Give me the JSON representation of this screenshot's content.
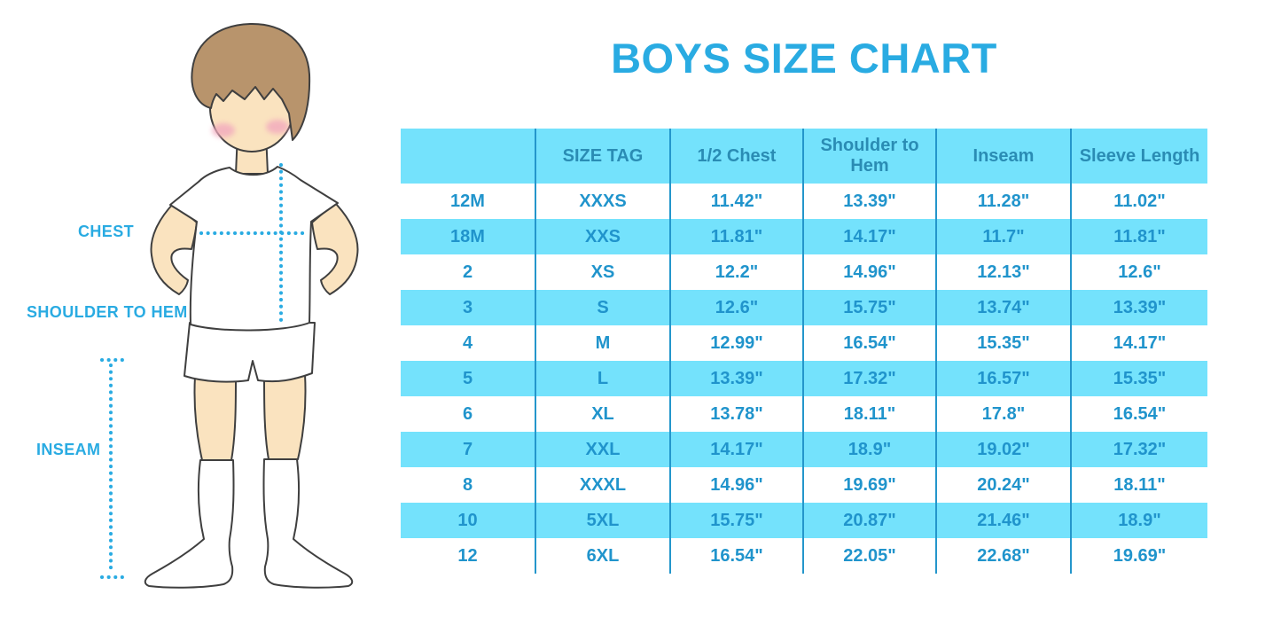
{
  "title": "BOYS SIZE CHART",
  "figure_labels": {
    "chest": "CHEST",
    "shoulder_to_hem": "SHOULDER TO HEM",
    "inseam": "INSEAM"
  },
  "colors": {
    "accent_blue": "#29ABE2",
    "table_row_fill": "#74E2FC",
    "table_divider": "#2496CB",
    "table_text": "#2094CC",
    "header_text": "#2A8CB4",
    "skin": "#FAE3BF",
    "hair": "#B8946C",
    "blush": "#F2A9BD",
    "outline": "#3F3F3F"
  },
  "chart_data": {
    "type": "table",
    "columns": [
      "",
      "SIZE TAG",
      "1/2 Chest",
      "Shoulder to Hem",
      "Inseam",
      "Sleeve Length"
    ],
    "rows": [
      [
        "12M",
        "XXXS",
        "11.42\"",
        "13.39\"",
        "11.28\"",
        "11.02\""
      ],
      [
        "18M",
        "XXS",
        "11.81\"",
        "14.17\"",
        "11.7\"",
        "11.81\""
      ],
      [
        "2",
        "XS",
        "12.2\"",
        "14.96\"",
        "12.13\"",
        "12.6\""
      ],
      [
        "3",
        "S",
        "12.6\"",
        "15.75\"",
        "13.74\"",
        "13.39\""
      ],
      [
        "4",
        "M",
        "12.99\"",
        "16.54\"",
        "15.35\"",
        "14.17\""
      ],
      [
        "5",
        "L",
        "13.39\"",
        "17.32\"",
        "16.57\"",
        "15.35\""
      ],
      [
        "6",
        "XL",
        "13.78\"",
        "18.11\"",
        "17.8\"",
        "16.54\""
      ],
      [
        "7",
        "XXL",
        "14.17\"",
        "18.9\"",
        "19.02\"",
        "17.32\""
      ],
      [
        "8",
        "XXXL",
        "14.96\"",
        "19.69\"",
        "20.24\"",
        "18.11\""
      ],
      [
        "10",
        "5XL",
        "15.75\"",
        "20.87\"",
        "21.46\"",
        "18.9\""
      ],
      [
        "12",
        "6XL",
        "16.54\"",
        "22.05\"",
        "22.68\"",
        "19.69\""
      ]
    ]
  }
}
